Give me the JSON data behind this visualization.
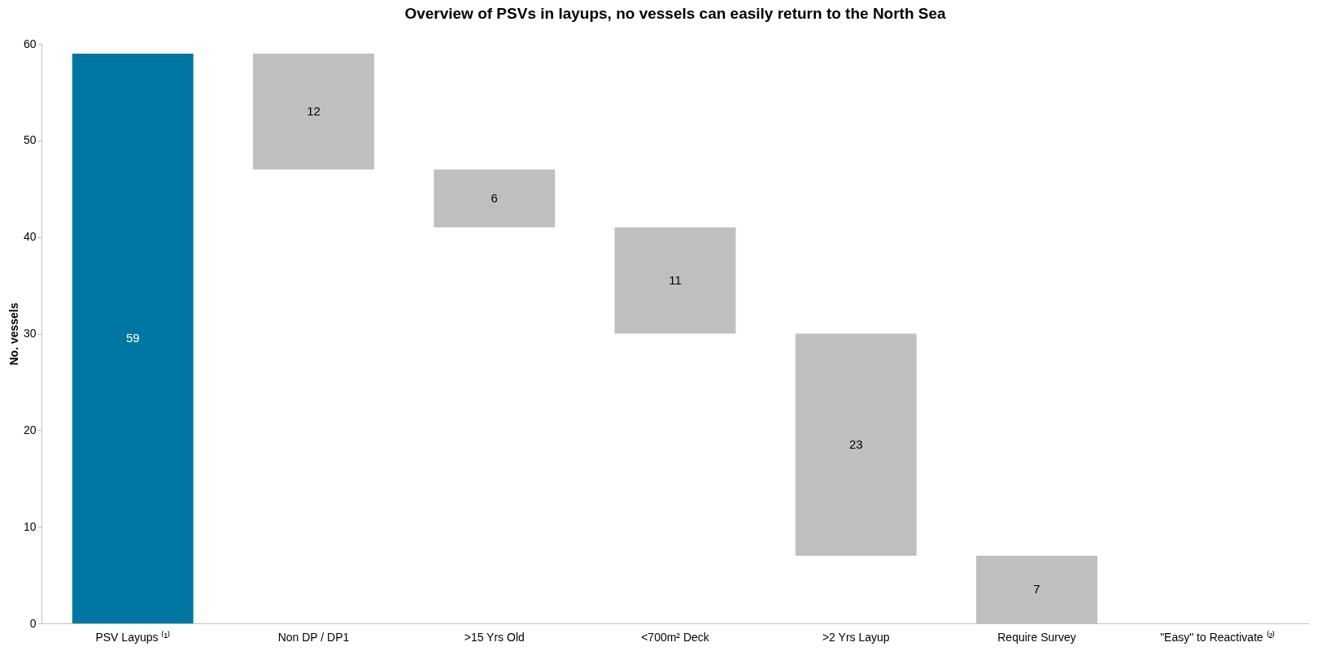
{
  "chart_data": {
    "type": "bar",
    "title": "Overview of PSVs in  layups, no vessels can easily return to the North Sea",
    "ylabel": "No. vessels",
    "categories": [
      "PSV Layups ⁽¹⁾",
      "Non DP / DP1",
      ">15 Yrs Old",
      "<700m² Deck",
      ">2 Yrs Layup",
      "Require Survey",
      "\"Easy\" to Reactivate ⁽²⁾"
    ],
    "values": [
      59,
      12,
      6,
      11,
      23,
      7,
      null
    ],
    "base": [
      0,
      47,
      41,
      30,
      7,
      0,
      null
    ],
    "colors": [
      "#0077a2",
      "#bfbfbf",
      "#bfbfbf",
      "#bfbfbf",
      "#bfbfbf",
      "#bfbfbf",
      "#bfbfbf"
    ],
    "value_labels": [
      "59",
      "12",
      "6",
      "11",
      "23",
      "7",
      null
    ],
    "ylim": [
      0,
      60
    ],
    "yticks": [
      0,
      10,
      20,
      30,
      40,
      50,
      60
    ],
    "grid": false
  }
}
